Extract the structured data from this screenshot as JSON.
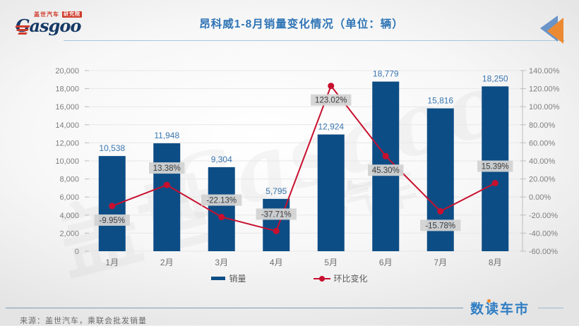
{
  "header": {
    "title": "昂科威1-8月销量变化情况（单位：辆）",
    "logo": {
      "brand": "Gasgoo",
      "sub_label": "盖世汽车",
      "badge": "研究院"
    }
  },
  "chart_data": {
    "type": "bar",
    "subtype": "combo-bar-line",
    "title": "昂科威1-8月销量变化情况（单位：辆）",
    "categories": [
      "1月",
      "2月",
      "3月",
      "4月",
      "5月",
      "6月",
      "7月",
      "8月"
    ],
    "series": [
      {
        "name": "销量",
        "type": "bar",
        "axis": "left",
        "color": "#0d4d85",
        "values": [
          10538,
          11948,
          9304,
          5795,
          12924,
          18779,
          15816,
          18250
        ],
        "labels": [
          "10,538",
          "11,948",
          "9,304",
          "5,795",
          "12,924",
          "18,779",
          "15,816",
          "18,250"
        ]
      },
      {
        "name": "环比变化",
        "type": "line",
        "axis": "right",
        "color": "#c8102e",
        "values": [
          -9.95,
          13.38,
          -22.13,
          -37.71,
          123.02,
          45.3,
          -15.78,
          15.39
        ],
        "labels": [
          "-9.95%",
          "13.38%",
          "-22.13%",
          "-37.71%",
          "123.02%",
          "45.30%",
          "-15.78%",
          "15.39%"
        ],
        "label_positions": [
          "below",
          "above",
          "above",
          "above",
          "below",
          "below",
          "below",
          "above"
        ]
      }
    ],
    "left_axis": {
      "min": 0,
      "max": 20000,
      "step": 2000,
      "tick_labels": [
        "0",
        "2,000",
        "4,000",
        "6,000",
        "8,000",
        "10,000",
        "12,000",
        "14,000",
        "16,000",
        "18,000",
        "20,000"
      ]
    },
    "right_axis": {
      "min": -60,
      "max": 140,
      "step": 20,
      "tick_labels": [
        "-60.00%",
        "-40.00%",
        "-20.00%",
        "0.00%",
        "20.00%",
        "40.00%",
        "60.00%",
        "80.00%",
        "100.00%",
        "120.00%",
        "140.00%"
      ]
    },
    "legend": {
      "position": "bottom",
      "entries": [
        "销量",
        "环比变化"
      ]
    },
    "grid": true,
    "label_box_color": "#d3d3d3"
  },
  "watermark": {
    "cn": "盖世",
    "en": "Gasgoo",
    "cn2": "汽车"
  },
  "footer": {
    "source": "来源：盖世汽车，乘联会批发销量",
    "brand": "数读车市"
  },
  "colors": {
    "bar": "#0d4d85",
    "line": "#c8102e",
    "title": "#2e74b5",
    "bar_label": "#3a76b0",
    "axis_text": "#7e7e7e",
    "pct_box_bg": "#d3d3d3",
    "brand_blue": "#2f7dc3",
    "brand_orange": "#f0862c",
    "logo_red": "#d03a2b",
    "logo_navy": "#173a66"
  }
}
